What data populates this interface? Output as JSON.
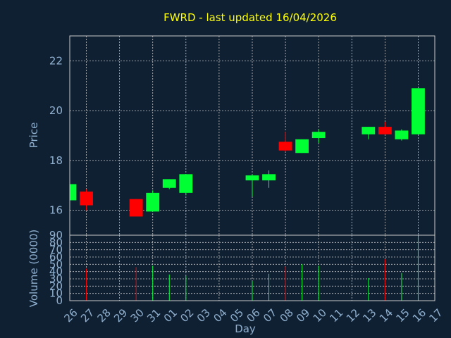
{
  "chart_data": {
    "type": "candlestick",
    "title": "FWRD - last updated 16/04/2026",
    "xlabel": "Day",
    "price_panel": {
      "ylabel": "Price",
      "ylim": [
        15,
        23
      ],
      "yticks": [
        16,
        18,
        20,
        22
      ]
    },
    "volume_panel": {
      "ylabel": "Volume (0000)",
      "ylim": [
        0,
        90
      ],
      "yticks": [
        0,
        10,
        20,
        30,
        40,
        50,
        60,
        70,
        80,
        90
      ]
    },
    "x_ticks": [
      "26",
      "27",
      "28",
      "29",
      "30",
      "31",
      "01",
      "02",
      "03",
      "04",
      "05",
      "06",
      "07",
      "08",
      "09",
      "10",
      "11",
      "12",
      "13",
      "14",
      "15",
      "16",
      "17"
    ],
    "colors": {
      "up": "#00ff33",
      "down": "#ff0000",
      "title": "#ffff00",
      "axis_text": "#8fb0cf",
      "background": "#102033",
      "grid": "#c8c8c8"
    },
    "candles": [
      {
        "day": "26",
        "open": 16.4,
        "high": 17.1,
        "low": 16.3,
        "close": 17.05,
        "volume": 0
      },
      {
        "day": "27",
        "open": 16.75,
        "high": 16.85,
        "low": 16.0,
        "close": 16.2,
        "volume": 44
      },
      {
        "day": "30",
        "open": 16.45,
        "high": 16.45,
        "low": 15.75,
        "close": 15.75,
        "volume": 46
      },
      {
        "day": "31",
        "open": 15.95,
        "high": 16.8,
        "low": 15.95,
        "close": 16.7,
        "volume": 48
      },
      {
        "day": "01",
        "open": 16.9,
        "high": 17.25,
        "low": 16.85,
        "close": 17.25,
        "volume": 36
      },
      {
        "day": "02",
        "open": 16.7,
        "high": 17.45,
        "low": 16.6,
        "close": 17.45,
        "volume": 34
      },
      {
        "day": "06",
        "open": 17.2,
        "high": 17.45,
        "low": 16.55,
        "close": 17.4,
        "volume": 27
      },
      {
        "day": "07",
        "open": 17.2,
        "high": 17.6,
        "low": 16.9,
        "close": 17.45,
        "volume": 37
      },
      {
        "day": "08",
        "open": 18.75,
        "high": 19.15,
        "low": 18.35,
        "close": 18.4,
        "volume": 47
      },
      {
        "day": "09",
        "open": 18.3,
        "high": 18.85,
        "low": 18.3,
        "close": 18.85,
        "volume": 50
      },
      {
        "day": "10",
        "open": 18.9,
        "high": 19.25,
        "low": 18.7,
        "close": 19.15,
        "volume": 48
      },
      {
        "day": "13",
        "open": 19.05,
        "high": 19.35,
        "low": 18.85,
        "close": 19.35,
        "volume": 31
      },
      {
        "day": "14",
        "open": 19.35,
        "high": 19.55,
        "low": 19.05,
        "close": 19.05,
        "volume": 57
      },
      {
        "day": "15",
        "open": 18.85,
        "high": 19.25,
        "low": 18.8,
        "close": 19.2,
        "volume": 38
      },
      {
        "day": "16",
        "open": 19.05,
        "high": 20.9,
        "low": 19.05,
        "close": 20.9,
        "volume": 88
      }
    ]
  }
}
